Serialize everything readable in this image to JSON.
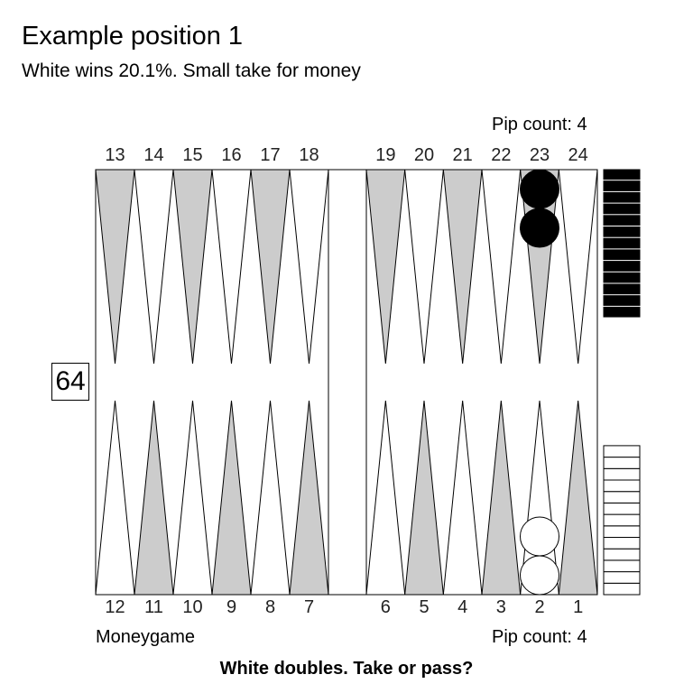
{
  "header": {
    "title": "Example position 1",
    "subtitle": "White wins 20.1%. Small take for money"
  },
  "pip_counts": {
    "top": "Pip count: 4",
    "bottom": "Pip count: 4"
  },
  "game_mode": "Moneygame",
  "prompt": "White doubles. Take or pass?",
  "cube": {
    "value": "64"
  },
  "points": {
    "top": [
      "13",
      "14",
      "15",
      "16",
      "17",
      "18",
      "19",
      "20",
      "21",
      "22",
      "23",
      "24"
    ],
    "bottom": [
      "12",
      "11",
      "10",
      "9",
      "8",
      "7",
      "6",
      "5",
      "4",
      "3",
      "2",
      "1"
    ]
  },
  "checkers": {
    "black": [
      {
        "point": 23,
        "count": 2
      }
    ],
    "white": [
      {
        "point": 2,
        "count": 2
      }
    ]
  },
  "borne_off": {
    "black": 13,
    "white": 13
  },
  "colors": {
    "board_background": "#ffffff",
    "point_dark": "#cccccc",
    "point_light": "#ffffff",
    "black_checker": "#000000",
    "white_checker": "#ffffff",
    "outline": "#000000"
  }
}
